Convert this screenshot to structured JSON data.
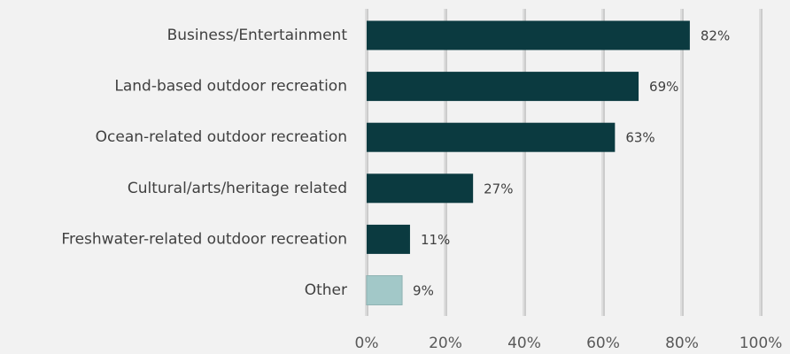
{
  "chart_data": {
    "type": "bar",
    "orientation": "horizontal",
    "categories": [
      "Business/Entertainment",
      "Land-based outdoor recreation",
      "Ocean-related outdoor recreation",
      "Cultural/arts/heritage related",
      "Freshwater-related outdoor recreation",
      "Other"
    ],
    "values": [
      82,
      69,
      63,
      27,
      11,
      9
    ],
    "value_labels": [
      "82%",
      "69%",
      "63%",
      "27%",
      "11%",
      "9%"
    ],
    "colors": [
      "#0b3a40",
      "#0b3a40",
      "#0b3a40",
      "#0b3a40",
      "#0b3a40",
      "#a2c8c8"
    ],
    "xlim": [
      0,
      100
    ],
    "xticks": [
      {
        "value": 0,
        "label": "0%"
      },
      {
        "value": 20,
        "label": "20%"
      },
      {
        "value": 40,
        "label": "40%"
      },
      {
        "value": 60,
        "label": "60%"
      },
      {
        "value": 80,
        "label": "80%"
      },
      {
        "value": 100,
        "label": "100%"
      }
    ],
    "grid": true
  }
}
